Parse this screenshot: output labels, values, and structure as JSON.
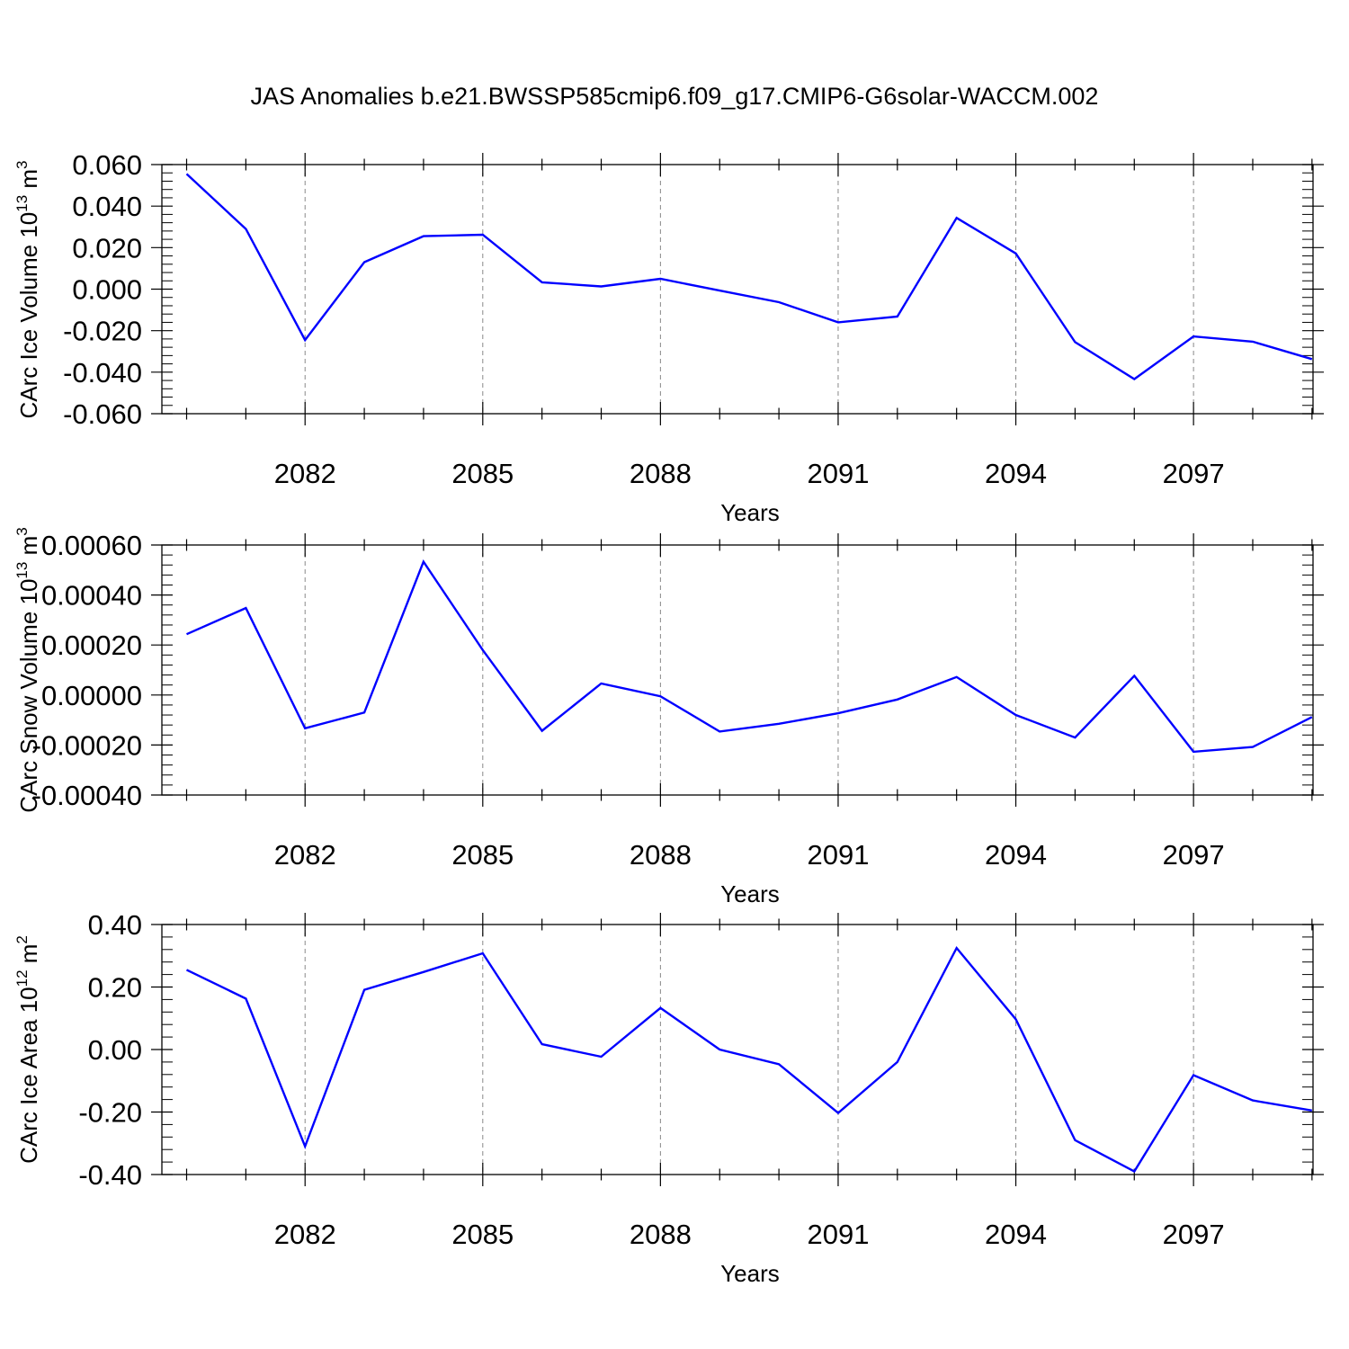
{
  "title": "JAS Anomalies b.e21.BWSSP585cmip6.f09_g17.CMIP6-G6solar-WACCM.002",
  "chart_data": [
    {
      "type": "line",
      "title": "",
      "xlabel": "Years",
      "ylabel": "CArc Ice Volume 10",
      "ylabel_exponent": "13",
      "ylabel_unit": " m",
      "ylabel_unit_exponent": "3",
      "ylim": [
        -0.06,
        0.06
      ],
      "yticks": [
        -0.06,
        -0.04,
        -0.02,
        0.0,
        0.02,
        0.04,
        0.06
      ],
      "ytick_labels": [
        "-0.060",
        "-0.040",
        "-0.020",
        "0.000",
        "0.020",
        "0.040",
        "0.060"
      ],
      "xlim": [
        2080,
        2099
      ],
      "xticks": [
        2082,
        2085,
        2088,
        2091,
        2094,
        2097
      ],
      "xtick_labels": [
        "2082",
        "2085",
        "2088",
        "2091",
        "2094",
        "2097"
      ],
      "grid": "vertical dashed at major x ticks",
      "color": "#0000ff",
      "series": [
        {
          "x": [
            2080,
            2081,
            2082,
            2083,
            2084,
            2085,
            2086,
            2087,
            2088,
            2089,
            2090,
            2091,
            2092,
            2093,
            2094,
            2095,
            2096,
            2097,
            2098,
            2099
          ],
          "values": [
            0.0555,
            0.029,
            -0.0245,
            0.013,
            0.0255,
            0.0262,
            0.0033,
            0.0013,
            0.005,
            -0.0007,
            -0.0063,
            -0.016,
            -0.0132,
            0.0343,
            0.0172,
            -0.0255,
            -0.0433,
            -0.0228,
            -0.0253,
            -0.0337
          ]
        }
      ]
    },
    {
      "type": "line",
      "title": "",
      "xlabel": "Years",
      "ylabel": "CArc Snow Volume 10",
      "ylabel_exponent": "13",
      "ylabel_unit": " m",
      "ylabel_unit_exponent": "3",
      "ylim": [
        -0.0004,
        0.0006
      ],
      "yticks": [
        -0.0004,
        -0.0002,
        0.0,
        0.0002,
        0.0004,
        0.0006
      ],
      "ytick_labels": [
        "-0.00040",
        "-0.00020",
        "0.00000",
        "0.00020",
        "0.00040",
        "0.00060"
      ],
      "xlim": [
        2080,
        2099
      ],
      "xticks": [
        2082,
        2085,
        2088,
        2091,
        2094,
        2097
      ],
      "xtick_labels": [
        "2082",
        "2085",
        "2088",
        "2091",
        "2094",
        "2097"
      ],
      "grid": "vertical dashed at major x ticks",
      "color": "#0000ff",
      "series": [
        {
          "x": [
            2080,
            2081,
            2082,
            2083,
            2084,
            2085,
            2086,
            2087,
            2088,
            2089,
            2090,
            2091,
            2092,
            2093,
            2094,
            2095,
            2096,
            2097,
            2098,
            2099
          ],
          "values": [
            0.000243,
            0.000348,
            -0.000133,
            -7e-05,
            0.000533,
            0.00018,
            -0.000143,
            4.6e-05,
            -5e-06,
            -0.000146,
            -0.000115,
            -7.3e-05,
            -1.8e-05,
            7.2e-05,
            -8e-05,
            -0.00017,
            7.7e-05,
            -0.000227,
            -0.000208,
            -8.8e-05
          ]
        }
      ]
    },
    {
      "type": "line",
      "title": "",
      "xlabel": "Years",
      "ylabel": "CArc Ice Area 10",
      "ylabel_exponent": "12",
      "ylabel_unit": " m",
      "ylabel_unit_exponent": "2",
      "ylim": [
        -0.4,
        0.4
      ],
      "yticks": [
        -0.4,
        -0.2,
        0.0,
        0.2,
        0.4
      ],
      "ytick_labels": [
        "-0.40",
        "-0.20",
        "0.00",
        "0.20",
        "0.40"
      ],
      "xlim": [
        2080,
        2099
      ],
      "xticks": [
        2082,
        2085,
        2088,
        2091,
        2094,
        2097
      ],
      "xtick_labels": [
        "2082",
        "2085",
        "2088",
        "2091",
        "2094",
        "2097"
      ],
      "grid": "vertical dashed at major x ticks",
      "color": "#0000ff",
      "series": [
        {
          "x": [
            2080,
            2081,
            2082,
            2083,
            2084,
            2085,
            2086,
            2087,
            2088,
            2089,
            2090,
            2091,
            2092,
            2093,
            2094,
            2095,
            2096,
            2097,
            2098,
            2099
          ],
          "values": [
            0.255,
            0.163,
            -0.31,
            0.191,
            0.248,
            0.308,
            0.017,
            -0.023,
            0.133,
            0.0,
            -0.047,
            -0.203,
            -0.04,
            0.325,
            0.097,
            -0.29,
            -0.39,
            -0.082,
            -0.163,
            -0.195
          ]
        }
      ]
    }
  ]
}
